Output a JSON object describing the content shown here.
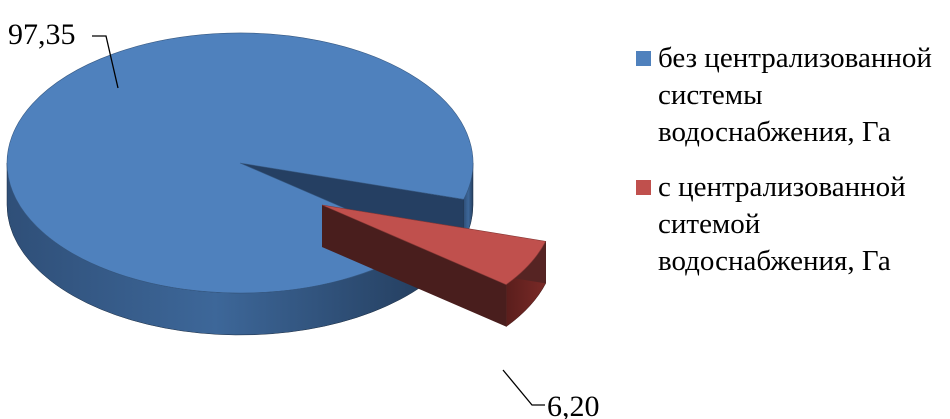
{
  "chart_data": {
    "type": "pie",
    "title": "",
    "categories": [
      "без централизованной системы водоснабжения, Га",
      "с централизованной ситемой водоснабжения, Га"
    ],
    "values": [
      97.35,
      6.2
    ],
    "labels": [
      "97,35",
      "6,20"
    ],
    "colors": [
      "#4f81bd",
      "#c0504d"
    ],
    "exploded": [
      false,
      true
    ],
    "legend_position": "right",
    "three_d": true
  },
  "legend": {
    "items": [
      {
        "text": "без централизованной системы водоснабжения, Га",
        "color": "#4f81bd"
      },
      {
        "text": "с централизованной ситемой водоснабжения, Га",
        "color": "#c0504d"
      }
    ]
  }
}
